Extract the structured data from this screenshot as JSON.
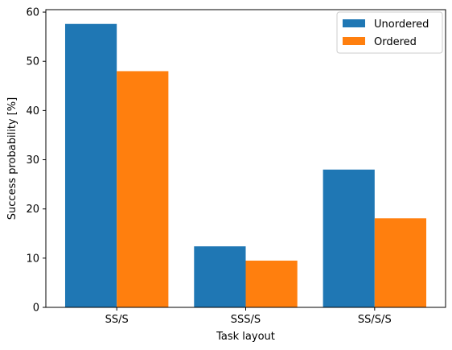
{
  "chart_data": {
    "type": "bar",
    "title": "",
    "xlabel": "Task layout",
    "ylabel": "Success probability [%]",
    "categories": [
      "SS/S",
      "SSS/S",
      "SS/S/S"
    ],
    "ylim": [
      0,
      60.5
    ],
    "yticks": [
      0,
      10,
      20,
      30,
      40,
      50,
      60
    ],
    "grid": false,
    "legend_position": "top-right",
    "series": [
      {
        "name": "Unordered",
        "color": "#1f77b4",
        "values": [
          57.6,
          12.4,
          28.0
        ]
      },
      {
        "name": "Ordered",
        "color": "#ff7f0e",
        "values": [
          48.0,
          9.5,
          18.1
        ]
      }
    ]
  }
}
